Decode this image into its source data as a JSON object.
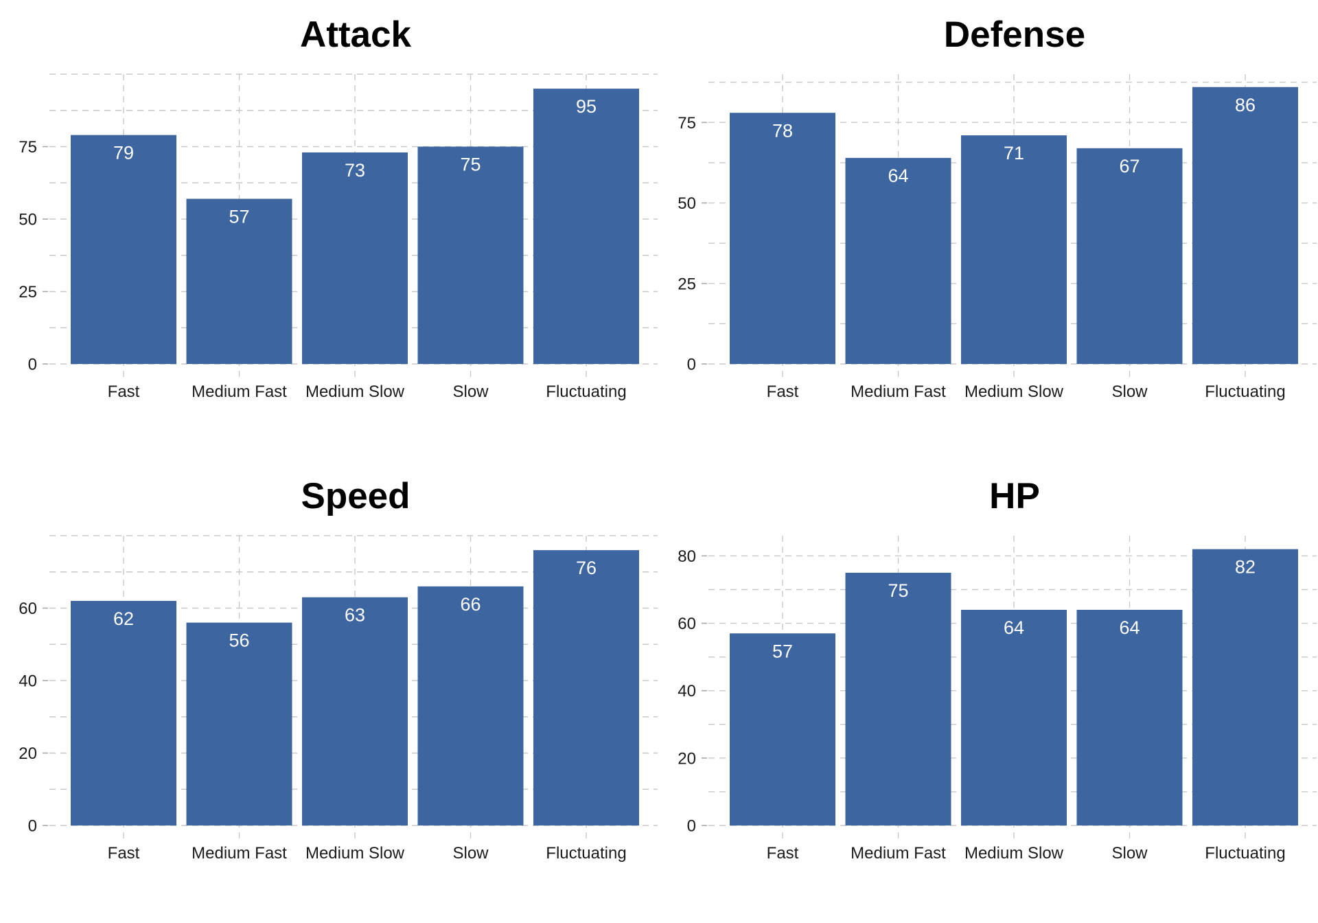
{
  "chart_data": [
    {
      "type": "bar",
      "title": "Attack",
      "categories": [
        "Fast",
        "Medium Fast",
        "Medium Slow",
        "Slow",
        "Fluctuating"
      ],
      "values": [
        79,
        57,
        73,
        75,
        95
      ],
      "value_labels": [
        "79",
        "57",
        "73",
        "75",
        "95"
      ],
      "yticks": [
        0,
        25,
        50,
        75
      ],
      "ytick_labels": [
        "0",
        "25",
        "50",
        "75"
      ],
      "ylim": [
        0,
        100
      ],
      "xlabel": "",
      "ylabel": "",
      "grid": true,
      "legend": "none"
    },
    {
      "type": "bar",
      "title": "Defense",
      "categories": [
        "Fast",
        "Medium Fast",
        "Medium Slow",
        "Slow",
        "Fluctuating"
      ],
      "values": [
        78,
        64,
        71,
        67,
        86
      ],
      "value_labels": [
        "78",
        "64",
        "71",
        "67",
        "86"
      ],
      "yticks": [
        0,
        25,
        50,
        75
      ],
      "ytick_labels": [
        "0",
        "25",
        "50",
        "75"
      ],
      "ylim": [
        0,
        90
      ],
      "xlabel": "",
      "ylabel": "",
      "grid": true,
      "legend": "none"
    },
    {
      "type": "bar",
      "title": "Speed",
      "categories": [
        "Fast",
        "Medium Fast",
        "Medium Slow",
        "Slow",
        "Fluctuating"
      ],
      "values": [
        62,
        56,
        63,
        66,
        76
      ],
      "value_labels": [
        "62",
        "56",
        "63",
        "66",
        "76"
      ],
      "yticks": [
        0,
        20,
        40,
        60
      ],
      "ytick_labels": [
        "0",
        "20",
        "40",
        "60"
      ],
      "ylim": [
        0,
        80
      ],
      "xlabel": "",
      "ylabel": "",
      "grid": true,
      "legend": "none"
    },
    {
      "type": "bar",
      "title": "HP",
      "categories": [
        "Fast",
        "Medium Fast",
        "Medium Slow",
        "Slow",
        "Fluctuating"
      ],
      "values": [
        57,
        75,
        64,
        64,
        82
      ],
      "value_labels": [
        "57",
        "75",
        "64",
        "64",
        "82"
      ],
      "yticks": [
        0,
        20,
        40,
        60,
        80
      ],
      "ytick_labels": [
        "0",
        "20",
        "40",
        "60",
        "80"
      ],
      "ylim": [
        0,
        86
      ],
      "xlabel": "",
      "ylabel": "",
      "grid": true,
      "legend": "none"
    }
  ],
  "colors": {
    "bar": "#3d65a0",
    "grid": "#c8c8c8",
    "data_label": "#ffffff",
    "tick_text": "#1a1a1a",
    "title_text": "#000000"
  }
}
